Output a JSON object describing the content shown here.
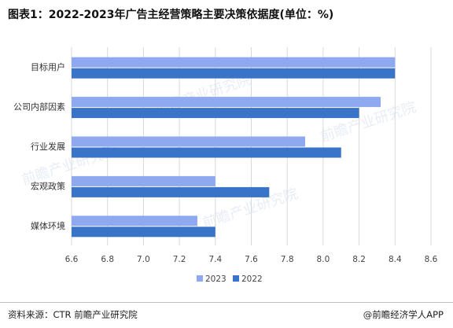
{
  "title": "图表1：2022-2023年广告主经营策略主要决策依据度(单位：%)",
  "source": "资料来源：CTR 前瞻产业研究院",
  "brand": "@前瞻经济学人APP",
  "watermark": "前瞻产业研究院",
  "colors": {
    "s2023": "#8EA9F0",
    "s2022": "#3A74C8",
    "grid": "#d9d9d9",
    "text": "#444444"
  },
  "chart_data": {
    "type": "bar",
    "orientation": "horizontal",
    "categories": [
      "目标用户",
      "公司内部因素",
      "行业发展",
      "宏观政策",
      "媒体环境"
    ],
    "series": [
      {
        "name": "2023",
        "values": [
          8.4,
          8.32,
          7.9,
          7.4,
          7.3
        ]
      },
      {
        "name": "2022",
        "values": [
          8.4,
          8.2,
          8.1,
          7.7,
          7.4
        ]
      }
    ],
    "xlim": [
      6.6,
      8.6
    ],
    "xticks": [
      "6.6",
      "6.8",
      "7.0",
      "7.2",
      "7.4",
      "7.6",
      "7.8",
      "8.0",
      "8.2",
      "8.4",
      "8.6"
    ],
    "grid": true,
    "legend": "bottom-center"
  }
}
